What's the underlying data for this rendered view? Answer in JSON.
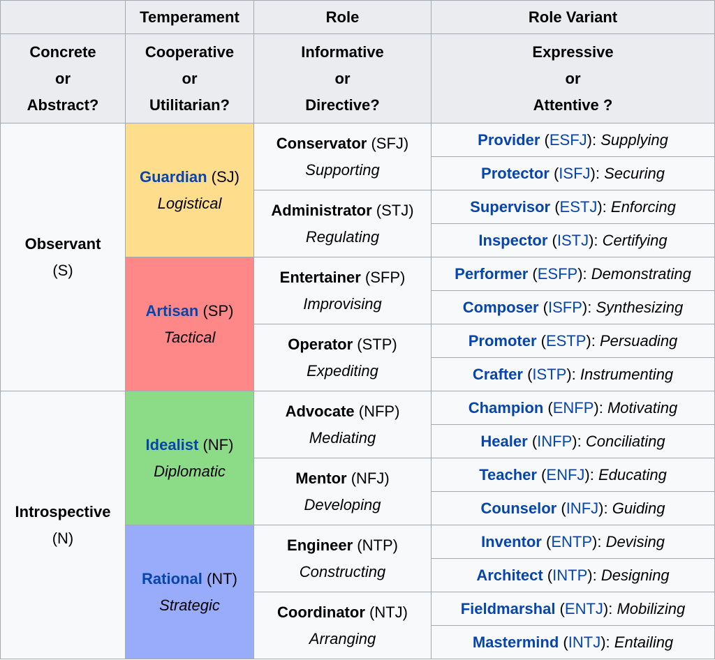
{
  "headers": {
    "row1": [
      "",
      "Temperament",
      "Role",
      "Role Variant"
    ],
    "row2": [
      [
        "Concrete",
        "or",
        "Abstract?"
      ],
      [
        "Cooperative",
        "or",
        "Utilitarian?"
      ],
      [
        "Informative",
        "or",
        "Directive?"
      ],
      [
        "Expressive",
        "or",
        "Attentive ?"
      ]
    ]
  },
  "groups": [
    {
      "name": "Observant",
      "code": "(S)"
    },
    {
      "name": "Introspective",
      "code": "(N)"
    }
  ],
  "temperaments": [
    {
      "name": "Guardian",
      "code": " (SJ)",
      "desc": "Logistical",
      "color": "#fedd8c"
    },
    {
      "name": "Artisan",
      "code": " (SP)",
      "desc": "Tactical",
      "color": "#fe8787"
    },
    {
      "name": "Idealist",
      "code": " (NF)",
      "desc": "Diplomatic",
      "color": "#8cdc87"
    },
    {
      "name": "Rational",
      "code": " (NT)",
      "desc": "Strategic",
      "color": "#99acfc"
    }
  ],
  "roles": [
    {
      "name": "Conservator",
      "code": " (SFJ)",
      "desc": "Supporting"
    },
    {
      "name": "Administrator",
      "code": " (STJ)",
      "desc": "Regulating"
    },
    {
      "name": "Entertainer",
      "code": " (SFP)",
      "desc": "Improvising"
    },
    {
      "name": "Operator",
      "code": " (STP)",
      "desc": "Expediting"
    },
    {
      "name": "Advocate",
      "code": " (NFP)",
      "desc": "Mediating"
    },
    {
      "name": "Mentor",
      "code": " (NFJ)",
      "desc": "Developing"
    },
    {
      "name": "Engineer",
      "code": " (NTP)",
      "desc": "Constructing"
    },
    {
      "name": "Coordinator",
      "code": " (NTJ)",
      "desc": "Arranging"
    }
  ],
  "variants": [
    {
      "name": "Provider",
      "type": "ESFJ",
      "desc": "Supplying"
    },
    {
      "name": "Protector",
      "type": "ISFJ",
      "desc": "Securing"
    },
    {
      "name": "Supervisor",
      "type": "ESTJ",
      "desc": "Enforcing"
    },
    {
      "name": "Inspector",
      "type": "ISTJ",
      "desc": "Certifying"
    },
    {
      "name": "Performer",
      "type": "ESFP",
      "desc": "Demonstrating"
    },
    {
      "name": "Composer",
      "type": "ISFP",
      "desc": "Synthesizing"
    },
    {
      "name": "Promoter",
      "type": "ESTP",
      "desc": "Persuading"
    },
    {
      "name": "Crafter",
      "type": "ISTP",
      "desc": "Instrumenting"
    },
    {
      "name": "Champion",
      "type": "ENFP",
      "desc": "Motivating"
    },
    {
      "name": "Healer",
      "type": "INFP",
      "desc": "Conciliating"
    },
    {
      "name": "Teacher",
      "type": "ENFJ",
      "desc": "Educating"
    },
    {
      "name": "Counselor",
      "type": "INFJ",
      "desc": "Guiding"
    },
    {
      "name": "Inventor",
      "type": "ENTP",
      "desc": "Devising"
    },
    {
      "name": "Architect",
      "type": "INTP",
      "desc": "Designing"
    },
    {
      "name": "Fieldmarshal",
      "type": "ENTJ",
      "desc": "Mobilizing"
    },
    {
      "name": "Mastermind",
      "type": "INTJ",
      "desc": "Entailing"
    }
  ],
  "punct": {
    "open": " (",
    "close": "): "
  }
}
